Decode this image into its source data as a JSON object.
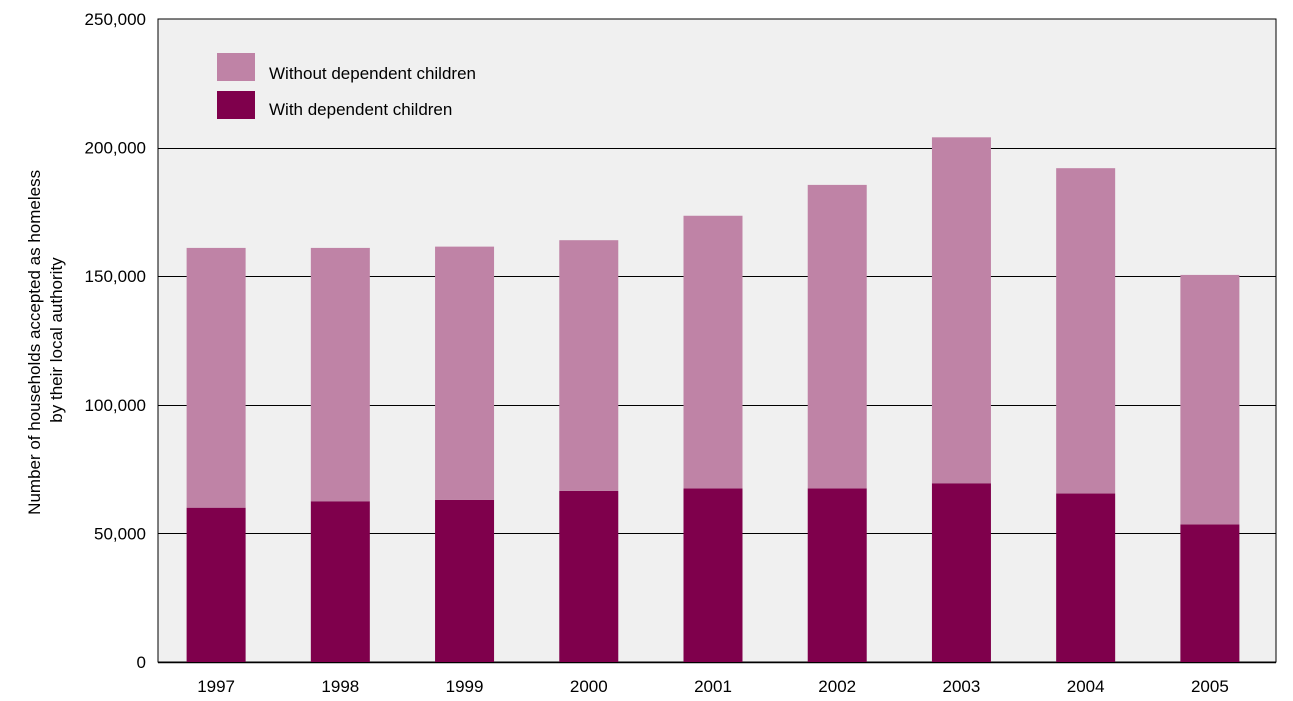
{
  "chart_data": {
    "type": "bar",
    "stacked": true,
    "categories": [
      "1997",
      "1998",
      "1999",
      "2000",
      "2001",
      "2002",
      "2003",
      "2004",
      "2005"
    ],
    "series": [
      {
        "name": "With dependent children",
        "color": "#7f004c",
        "values": [
          60000,
          62500,
          63000,
          66500,
          67500,
          67500,
          69500,
          65500,
          53500
        ]
      },
      {
        "name": "Without dependent children",
        "color": "#bf83a6",
        "values": [
          101000,
          98500,
          98500,
          97500,
          106000,
          118000,
          134500,
          126500,
          97000
        ]
      }
    ],
    "ylabel_lines": [
      "Number of households accepted as homeless",
      "by their local authority"
    ],
    "ylim": [
      0,
      250000
    ],
    "yticks": [
      0,
      50000,
      100000,
      150000,
      200000,
      250000
    ],
    "ytick_labels": [
      "0",
      "50,000",
      "100,000",
      "150,000",
      "200,000",
      "250,000"
    ],
    "grid": true,
    "legend_position": "top-left",
    "legend_order": [
      "Without dependent children",
      "With dependent children"
    ],
    "plot_background": "#f0f0f0"
  }
}
